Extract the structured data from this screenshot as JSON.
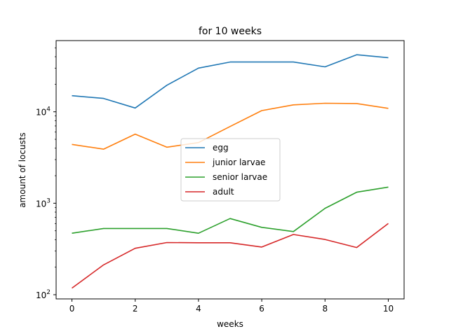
{
  "chart_data": {
    "type": "line",
    "title": "for 10 weeks",
    "xlabel": "weeks",
    "ylabel": "amount of locusts",
    "yscale": "log",
    "xlim": [
      -0.5,
      10.5
    ],
    "ylim": [
      90,
      60000
    ],
    "x_ticks": [
      0,
      2,
      4,
      6,
      8,
      10
    ],
    "y_ticks": [
      {
        "value": 100,
        "base": "10",
        "exp": "2"
      },
      {
        "value": 1000,
        "base": "10",
        "exp": "3"
      },
      {
        "value": 10000,
        "base": "10",
        "exp": "4"
      }
    ],
    "grid": false,
    "legend_position": "center",
    "x": [
      0,
      1,
      2,
      3,
      4,
      5,
      6,
      7,
      8,
      9,
      10
    ],
    "series": [
      {
        "name": "egg",
        "color": "#1f77b4",
        "values": [
          15000,
          14000,
          11000,
          19500,
          30000,
          35000,
          35000,
          35000,
          31000,
          42000,
          39000
        ]
      },
      {
        "name": "junior larvae",
        "color": "#ff7f0e",
        "values": [
          4400,
          3900,
          5700,
          4100,
          4600,
          6900,
          10300,
          11900,
          12400,
          12300,
          10900
        ]
      },
      {
        "name": "senior larvae",
        "color": "#2ca02c",
        "values": [
          470,
          530,
          530,
          530,
          470,
          680,
          545,
          490,
          880,
          1320,
          1500
        ]
      },
      {
        "name": "adult",
        "color": "#d62728",
        "values": [
          118,
          212,
          322,
          372,
          370,
          370,
          332,
          455,
          402,
          328,
          600
        ]
      }
    ]
  }
}
